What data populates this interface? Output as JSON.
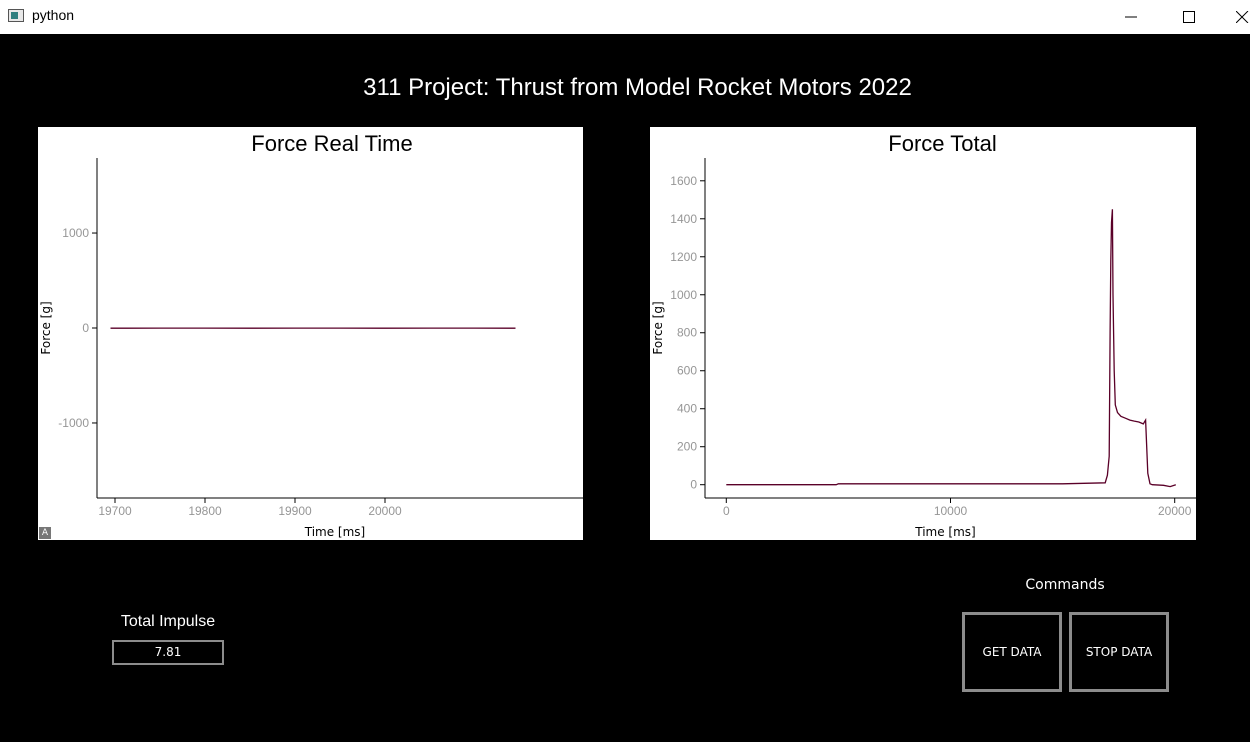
{
  "window": {
    "title": "python",
    "icon": "python-window-icon"
  },
  "header": {
    "title": "311 Project: Thrust from Model Rocket Motors 2022"
  },
  "colors": {
    "background": "#000000",
    "plot_background": "#ffffff",
    "series": "#5a0028",
    "tick_text": "#969696",
    "button_border": "#8c8c8c"
  },
  "chart_data": [
    {
      "type": "line",
      "title": "Force Real Time",
      "xlabel": "Time [ms]",
      "ylabel": "Force [g]",
      "xlim": [
        19680,
        20220
      ],
      "ylim": [
        -1790,
        1790
      ],
      "xticks": [
        19700,
        19800,
        19900,
        20000
      ],
      "yticks": [
        -1000,
        0,
        1000
      ],
      "tick_labels_x": [
        "19700",
        "19800",
        "19900",
        "20000"
      ],
      "tick_labels_y": [
        "-1000",
        "0",
        "1000"
      ],
      "grid": false,
      "series": [
        {
          "x": [
            19695,
            19750,
            19800,
            19850,
            19900,
            19950,
            20000,
            20050,
            20100,
            20145
          ],
          "y": [
            -2,
            -1,
            -1,
            -2,
            -1,
            -1,
            -2,
            -1,
            -1,
            -2
          ]
        }
      ]
    },
    {
      "type": "line",
      "title": "Force Total",
      "xlabel": "Time [ms]",
      "ylabel": "Force [g]",
      "xlim": [
        -950,
        20950
      ],
      "ylim": [
        -70,
        1720
      ],
      "xticks": [
        0,
        10000,
        20000
      ],
      "yticks": [
        0,
        200,
        400,
        600,
        800,
        1000,
        1200,
        1400,
        1600
      ],
      "tick_labels_x": [
        "0",
        "10000",
        "20000"
      ],
      "tick_labels_y": [
        "0",
        "200",
        "400",
        "600",
        "800",
        "1000",
        "1200",
        "1400",
        "1600"
      ],
      "grid": false,
      "series": [
        {
          "x": [
            0,
            2000,
            4000,
            4900,
            5000,
            8000,
            12000,
            15000,
            16900,
            17000,
            17080,
            17120,
            17150,
            17180,
            17220,
            17250,
            17300,
            17350,
            17450,
            17600,
            17800,
            18000,
            18200,
            18400,
            18600,
            18700,
            18800,
            18900,
            19000,
            19500,
            19800,
            20050
          ],
          "y": [
            0,
            0,
            0,
            0,
            5,
            5,
            5,
            5,
            10,
            50,
            150,
            800,
            1180,
            1380,
            1450,
            1000,
            600,
            420,
            380,
            360,
            350,
            340,
            335,
            330,
            320,
            340,
            60,
            5,
            0,
            -3,
            -10,
            0
          ]
        }
      ]
    }
  ],
  "impulse": {
    "label": "Total Impulse",
    "value": "7.81"
  },
  "commands": {
    "label": "Commands",
    "get_data": "GET DATA",
    "stop_data": "STOP DATA"
  },
  "plot_controls": {
    "auto_range": "A"
  }
}
